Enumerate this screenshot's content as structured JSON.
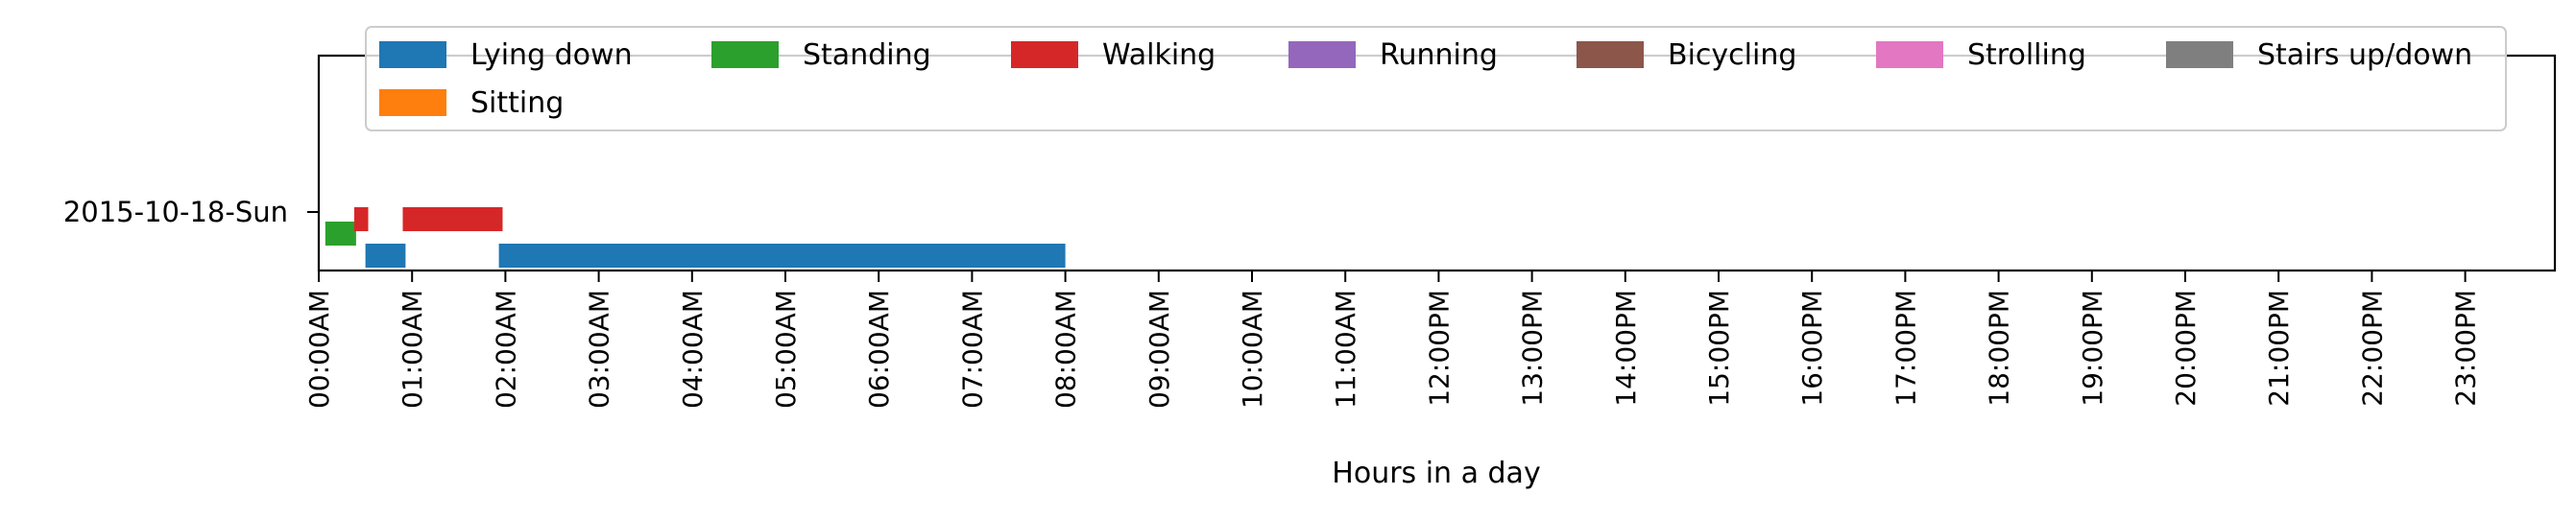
{
  "chart_data": {
    "type": "bar",
    "orientation": "horizontal",
    "xlabel": "Hours in a day",
    "ylabel": "",
    "title": "",
    "xlim": [
      0,
      24
    ],
    "x_ticks": [
      "00:00AM",
      "01:00AM",
      "02:00AM",
      "03:00AM",
      "04:00AM",
      "05:00AM",
      "06:00AM",
      "07:00AM",
      "08:00AM",
      "09:00AM",
      "10:00AM",
      "11:00AM",
      "12:00PM",
      "13:00PM",
      "14:00PM",
      "15:00PM",
      "16:00PM",
      "17:00PM",
      "18:00PM",
      "19:00PM",
      "20:00PM",
      "21:00PM",
      "22:00PM",
      "23:00PM"
    ],
    "categories": [
      "2015-10-18-Sun"
    ],
    "legend": {
      "placement": "top",
      "entries": [
        {
          "name": "Lying down",
          "color": "#1f77b4"
        },
        {
          "name": "Standing",
          "color": "#2ca02c"
        },
        {
          "name": "Walking",
          "color": "#d62728"
        },
        {
          "name": "Running",
          "color": "#9467bd"
        },
        {
          "name": "Bicycling",
          "color": "#8c564b"
        },
        {
          "name": "Strolling",
          "color": "#e377c2"
        },
        {
          "name": "Stairs up/down",
          "color": "#7f7f7f"
        },
        {
          "name": "Sitting",
          "color": "#ff7f0e"
        }
      ]
    },
    "series": [
      {
        "name": "Lying down",
        "color": "#1f77b4",
        "lane": 0,
        "intervals": [
          [
            0.5,
            0.93
          ],
          [
            1.93,
            8.0
          ]
        ]
      },
      {
        "name": "Standing",
        "color": "#2ca02c",
        "lane": 2,
        "intervals": [
          [
            0.07,
            0.4
          ]
        ]
      },
      {
        "name": "Walking",
        "color": "#d62728",
        "lane": 1,
        "intervals": [
          [
            0.38,
            0.53
          ],
          [
            0.9,
            1.97
          ]
        ]
      },
      {
        "name": "Running",
        "color": "#9467bd",
        "lane": 3,
        "intervals": []
      },
      {
        "name": "Bicycling",
        "color": "#8c564b",
        "lane": 4,
        "intervals": []
      },
      {
        "name": "Strolling",
        "color": "#e377c2",
        "lane": 5,
        "intervals": []
      },
      {
        "name": "Stairs up/down",
        "color": "#7f7f7f",
        "lane": 6,
        "intervals": []
      },
      {
        "name": "Sitting",
        "color": "#ff7f0e",
        "lane": 7,
        "intervals": []
      }
    ]
  }
}
